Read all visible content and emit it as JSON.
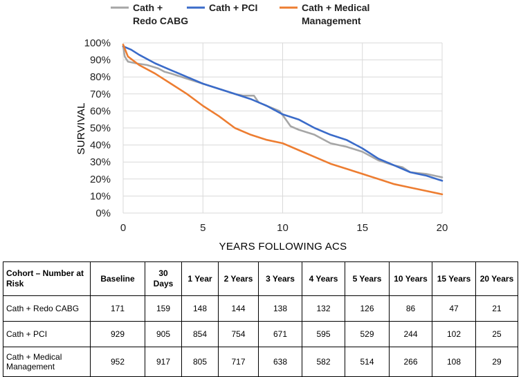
{
  "chart_data": {
    "type": "line",
    "xlabel": "YEARS FOLLOWING ACS",
    "ylabel": "SURVIVAL",
    "xlim": [
      0,
      20
    ],
    "ylim": [
      0,
      100
    ],
    "x_ticks": [
      0,
      5,
      10,
      15,
      20
    ],
    "y_ticks": [
      0,
      10,
      20,
      30,
      40,
      50,
      60,
      70,
      80,
      90,
      100
    ],
    "y_tick_labels": [
      "0%",
      "10%",
      "20%",
      "30%",
      "40%",
      "50%",
      "60%",
      "70%",
      "80%",
      "90%",
      "100%"
    ],
    "grid": true,
    "legend_position": "top",
    "series": [
      {
        "name": "Cath + Redo CABG",
        "legend_lines": [
          "Cath +",
          "Redo CABG"
        ],
        "color": "#a6a6a6",
        "x": [
          0,
          0.1,
          0.3,
          0.8,
          1.5,
          2.2,
          2.6,
          3.0,
          4.0,
          5.0,
          6.0,
          7.0,
          7.5,
          8.2,
          8.5,
          9.0,
          9.8,
          10.2,
          10.5,
          11.0,
          12.0,
          13.0,
          13.5,
          14.0,
          15.0,
          16.0,
          17.0,
          17.5,
          18.0,
          19.0,
          20.0
        ],
        "y": [
          98,
          92,
          89,
          88,
          87,
          85,
          83,
          82,
          79,
          76,
          73,
          70,
          69,
          69,
          65,
          63,
          60,
          55,
          51,
          49,
          46,
          41,
          40,
          39,
          36,
          31,
          28,
          27,
          24,
          23,
          21
        ]
      },
      {
        "name": "Cath + PCI",
        "legend_lines": [
          "Cath + PCI"
        ],
        "color": "#3a6bc9",
        "x": [
          0,
          0.5,
          1.0,
          2.0,
          3.0,
          4.0,
          5.0,
          6.0,
          7.0,
          8.0,
          9.0,
          10.0,
          11.0,
          12.0,
          13.0,
          14.0,
          15.0,
          16.0,
          17.0,
          18.0,
          19.0,
          20.0
        ],
        "y": [
          98,
          96,
          93,
          88,
          84,
          80,
          76,
          73,
          70,
          67,
          63,
          58,
          55,
          50,
          46,
          43,
          38,
          32,
          28,
          24,
          22,
          19
        ]
      },
      {
        "name": "Cath + Medical Management",
        "legend_lines": [
          "Cath + Medical",
          "Management"
        ],
        "color": "#ed7d31",
        "x": [
          0,
          0.3,
          1.0,
          2.0,
          3.0,
          4.0,
          5.0,
          6.0,
          7.0,
          8.0,
          9.0,
          10.0,
          11.0,
          12.0,
          13.0,
          14.0,
          15.0,
          16.0,
          17.0,
          18.0,
          19.0,
          20.0
        ],
        "y": [
          99,
          92,
          87,
          82,
          76,
          70,
          63,
          57,
          50,
          46,
          43,
          41,
          37,
          33,
          29,
          26,
          23,
          20,
          17,
          15,
          13,
          11
        ]
      }
    ]
  },
  "risk_table": {
    "header_first": "Cohort – Number at Risk",
    "headers": [
      "Baseline",
      "30 Days",
      "1 Year",
      "2 Years",
      "3 Years",
      "4 Years",
      "5 Years",
      "10 Years",
      "15 Years",
      "20 Years"
    ],
    "rows": [
      {
        "label": "Cath + Redo CABG",
        "values": [
          "171",
          "159",
          "148",
          "144",
          "138",
          "132",
          "126",
          "86",
          "47",
          "21"
        ]
      },
      {
        "label": "Cath + PCI",
        "values": [
          "929",
          "905",
          "854",
          "754",
          "671",
          "595",
          "529",
          "244",
          "102",
          "25"
        ]
      },
      {
        "label": "Cath + Medical Management",
        "values": [
          "952",
          "917",
          "805",
          "717",
          "638",
          "582",
          "514",
          "266",
          "108",
          "29"
        ]
      }
    ]
  }
}
